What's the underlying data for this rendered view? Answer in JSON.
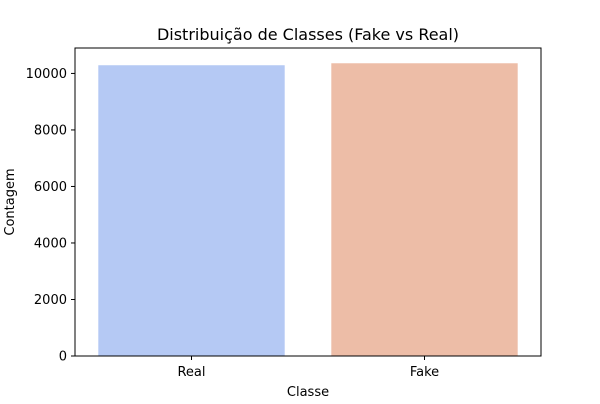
{
  "chart_data": {
    "type": "bar",
    "title": "Distribuição de Classes (Fake vs Real)",
    "xlabel": "Classe",
    "ylabel": "Contagem",
    "categories": [
      "Real",
      "Fake"
    ],
    "values": [
      10290,
      10360
    ],
    "colors": [
      "#b5c9f4",
      "#edbda7"
    ],
    "ylim": [
      0,
      10900
    ],
    "yticks": [
      0,
      2000,
      4000,
      6000,
      8000,
      10000
    ],
    "grid": false,
    "legend": "none"
  }
}
